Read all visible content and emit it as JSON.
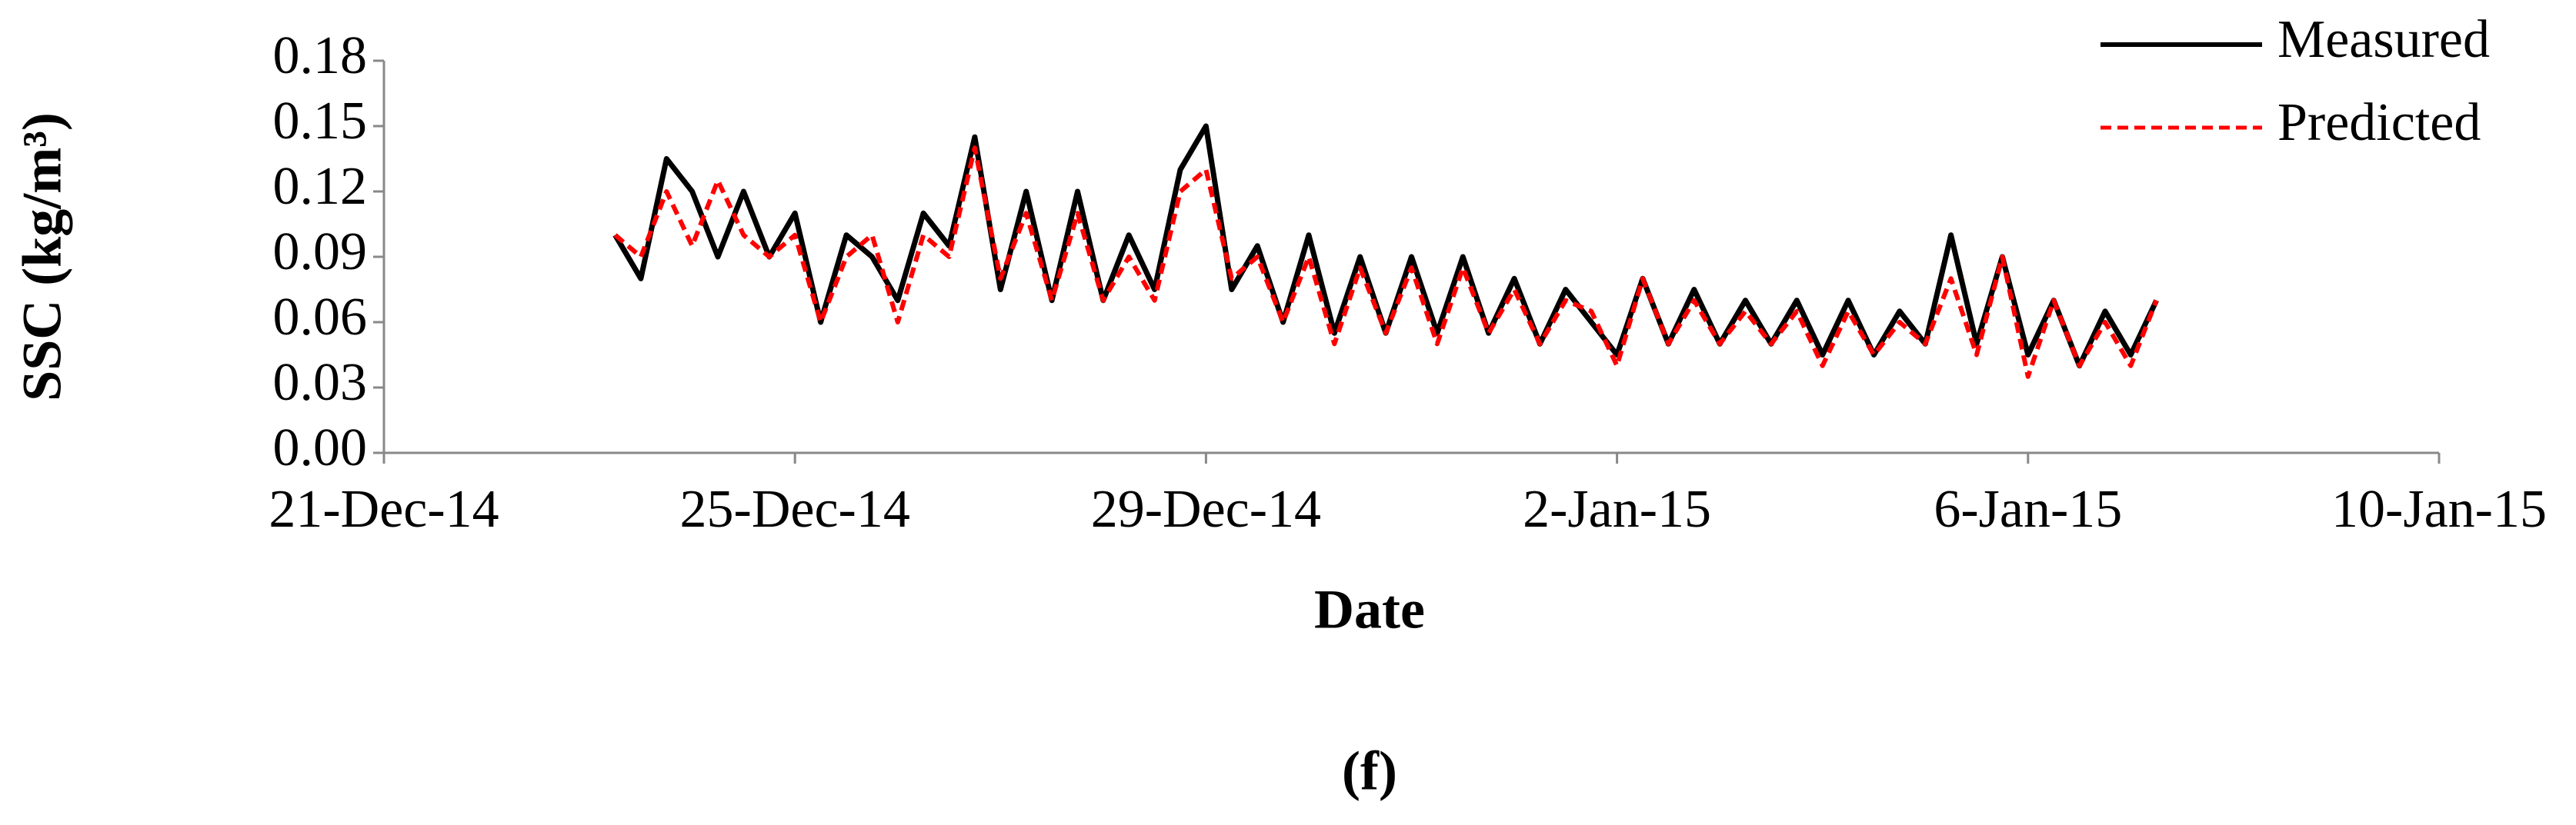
{
  "chart_data": {
    "type": "line",
    "annotation": "(f)",
    "xlabel": "Date",
    "ylabel": "SSC (kg/m³)",
    "xlim": [
      "2014-12-21",
      "2015-01-10"
    ],
    "xticks": [
      {
        "value": "2014-12-21",
        "label": "21-Dec-14"
      },
      {
        "value": "2014-12-25",
        "label": "25-Dec-14"
      },
      {
        "value": "2014-12-29",
        "label": "29-Dec-14"
      },
      {
        "value": "2015-01-02",
        "label": "2-Jan-15"
      },
      {
        "value": "2015-01-06",
        "label": "6-Jan-15"
      },
      {
        "value": "2015-01-10",
        "label": "10-Jan-15"
      }
    ],
    "ylim": [
      0,
      0.18
    ],
    "yticks": [
      {
        "value": 0,
        "label": "0.00"
      },
      {
        "value": 0.03,
        "label": "0.03"
      },
      {
        "value": 0.06,
        "label": "0.06"
      },
      {
        "value": 0.09,
        "label": "0.09"
      },
      {
        "value": 0.12,
        "label": "0.12"
      },
      {
        "value": 0.15,
        "label": "0.15"
      },
      {
        "value": 0.18,
        "label": "0.18"
      }
    ],
    "legend": "top-right",
    "x": [
      "2014-12-23 06:00",
      "2014-12-23 12:00",
      "2014-12-23 18:00",
      "2014-12-24 00:00",
      "2014-12-24 06:00",
      "2014-12-24 12:00",
      "2014-12-24 18:00",
      "2014-12-25 00:00",
      "2014-12-25 06:00",
      "2014-12-25 12:00",
      "2014-12-25 18:00",
      "2014-12-26 00:00",
      "2014-12-26 06:00",
      "2014-12-26 12:00",
      "2014-12-26 18:00",
      "2014-12-27 00:00",
      "2014-12-27 06:00",
      "2014-12-27 12:00",
      "2014-12-27 18:00",
      "2014-12-28 00:00",
      "2014-12-28 06:00",
      "2014-12-28 12:00",
      "2014-12-28 18:00",
      "2014-12-29 00:00",
      "2014-12-29 06:00",
      "2014-12-29 12:00",
      "2014-12-29 18:00",
      "2014-12-30 00:00",
      "2014-12-30 06:00",
      "2014-12-30 12:00",
      "2014-12-30 18:00",
      "2014-12-31 00:00",
      "2014-12-31 06:00",
      "2014-12-31 12:00",
      "2014-12-31 18:00",
      "2015-01-01 00:00",
      "2015-01-01 06:00",
      "2015-01-01 12:00",
      "2015-01-01 18:00",
      "2015-01-02 00:00",
      "2015-01-02 06:00",
      "2015-01-02 12:00",
      "2015-01-02 18:00",
      "2015-01-03 00:00",
      "2015-01-03 06:00",
      "2015-01-03 12:00",
      "2015-01-03 18:00",
      "2015-01-04 00:00",
      "2015-01-04 06:00",
      "2015-01-04 12:00",
      "2015-01-04 18:00",
      "2015-01-05 00:00",
      "2015-01-05 06:00",
      "2015-01-05 12:00",
      "2015-01-05 18:00",
      "2015-01-06 00:00",
      "2015-01-06 06:00",
      "2015-01-06 12:00",
      "2015-01-06 18:00",
      "2015-01-07 00:00",
      "2015-01-07 06:00"
    ],
    "series": [
      {
        "name": "Measured",
        "color": "#000000",
        "linestyle": "solid",
        "values": [
          0.1,
          0.08,
          0.135,
          0.12,
          0.09,
          0.12,
          0.09,
          0.11,
          0.06,
          0.1,
          0.09,
          0.07,
          0.11,
          0.095,
          0.145,
          0.075,
          0.12,
          0.07,
          0.12,
          0.07,
          0.1,
          0.075,
          0.13,
          0.15,
          0.075,
          0.095,
          0.06,
          0.1,
          0.055,
          0.09,
          0.055,
          0.09,
          0.055,
          0.09,
          0.055,
          0.08,
          0.05,
          0.075,
          0.06,
          0.045,
          0.08,
          0.05,
          0.075,
          0.05,
          0.07,
          0.05,
          0.07,
          0.045,
          0.07,
          0.045,
          0.065,
          0.05,
          0.1,
          0.05,
          0.09,
          0.045,
          0.07,
          0.04,
          0.065,
          0.045,
          0.07
        ]
      },
      {
        "name": "Predicted",
        "color": "#ff0000",
        "linestyle": "dashed",
        "values": [
          0.1,
          0.09,
          0.12,
          0.095,
          0.125,
          0.1,
          0.09,
          0.1,
          0.06,
          0.09,
          0.1,
          0.06,
          0.1,
          0.09,
          0.14,
          0.08,
          0.11,
          0.07,
          0.11,
          0.07,
          0.09,
          0.07,
          0.12,
          0.13,
          0.08,
          0.09,
          0.06,
          0.09,
          0.05,
          0.085,
          0.055,
          0.085,
          0.05,
          0.085,
          0.055,
          0.075,
          0.05,
          0.07,
          0.065,
          0.04,
          0.08,
          0.05,
          0.07,
          0.05,
          0.065,
          0.05,
          0.065,
          0.04,
          0.065,
          0.045,
          0.06,
          0.05,
          0.08,
          0.045,
          0.09,
          0.035,
          0.07,
          0.04,
          0.06,
          0.04,
          0.07
        ]
      }
    ]
  }
}
